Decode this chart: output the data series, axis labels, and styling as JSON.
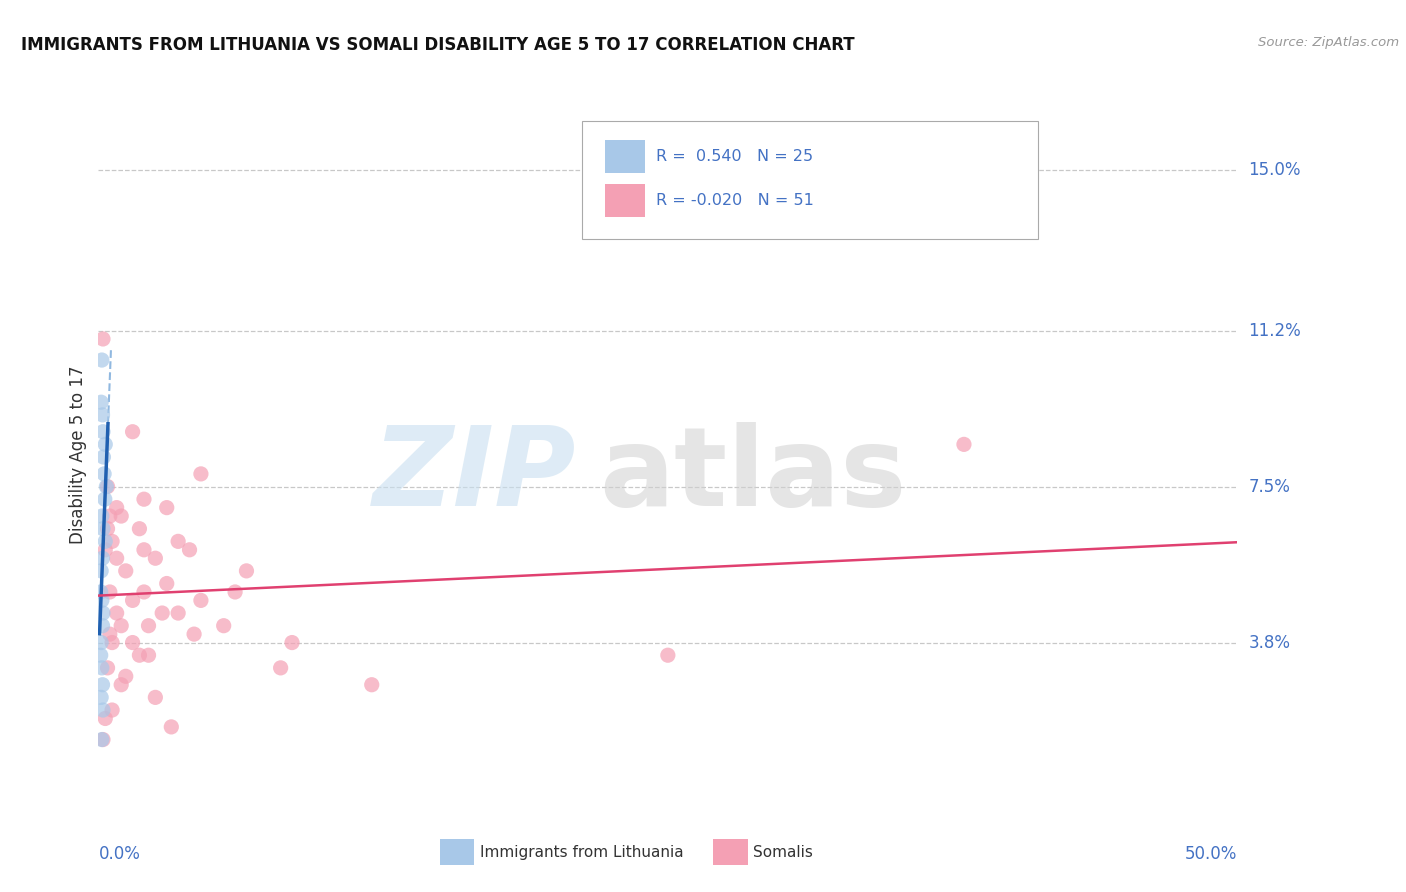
{
  "title": "IMMIGRANTS FROM LITHUANIA VS SOMALI DISABILITY AGE 5 TO 17 CORRELATION CHART",
  "source": "Source: ZipAtlas.com",
  "ylabel": "Disability Age 5 to 17",
  "xlim": [
    0.0,
    50.0
  ],
  "ylim": [
    0.0,
    16.5
  ],
  "yticks": [
    3.8,
    7.5,
    11.2,
    15.0
  ],
  "ytick_labels": [
    "3.8%",
    "7.5%",
    "11.2%",
    "15.0%"
  ],
  "color_blue": "#a8c8e8",
  "color_pink": "#f4a0b4",
  "color_blue_line": "#2060b0",
  "color_pink_line": "#e04070",
  "color_blue_dash": "#90b8e0",
  "blue_points": [
    [
      0.15,
      10.5
    ],
    [
      0.12,
      9.5
    ],
    [
      0.18,
      9.2
    ],
    [
      0.2,
      8.8
    ],
    [
      0.3,
      8.5
    ],
    [
      0.22,
      8.2
    ],
    [
      0.25,
      7.8
    ],
    [
      0.35,
      7.5
    ],
    [
      0.28,
      7.2
    ],
    [
      0.15,
      6.8
    ],
    [
      0.2,
      6.5
    ],
    [
      0.3,
      6.2
    ],
    [
      0.18,
      5.8
    ],
    [
      0.12,
      5.5
    ],
    [
      0.1,
      5.0
    ],
    [
      0.15,
      4.8
    ],
    [
      0.2,
      4.5
    ],
    [
      0.18,
      4.2
    ],
    [
      0.12,
      3.8
    ],
    [
      0.1,
      3.5
    ],
    [
      0.15,
      3.2
    ],
    [
      0.18,
      2.8
    ],
    [
      0.12,
      2.5
    ],
    [
      0.2,
      2.2
    ],
    [
      0.15,
      1.5
    ]
  ],
  "pink_points": [
    [
      0.2,
      11.0
    ],
    [
      1.5,
      8.8
    ],
    [
      4.5,
      7.8
    ],
    [
      2.0,
      7.2
    ],
    [
      0.8,
      7.0
    ],
    [
      0.5,
      6.8
    ],
    [
      0.4,
      6.5
    ],
    [
      0.6,
      6.2
    ],
    [
      3.5,
      6.2
    ],
    [
      4.0,
      6.0
    ],
    [
      2.5,
      5.8
    ],
    [
      1.2,
      5.5
    ],
    [
      6.5,
      5.5
    ],
    [
      3.0,
      5.2
    ],
    [
      2.0,
      5.0
    ],
    [
      1.5,
      4.8
    ],
    [
      4.5,
      4.8
    ],
    [
      0.8,
      4.5
    ],
    [
      3.5,
      4.5
    ],
    [
      2.8,
      4.5
    ],
    [
      5.5,
      4.2
    ],
    [
      1.0,
      4.2
    ],
    [
      0.5,
      4.0
    ],
    [
      0.6,
      3.8
    ],
    [
      8.5,
      3.8
    ],
    [
      2.2,
      3.5
    ],
    [
      1.8,
      3.5
    ],
    [
      0.4,
      3.2
    ],
    [
      1.2,
      3.0
    ],
    [
      1.0,
      2.8
    ],
    [
      2.5,
      2.5
    ],
    [
      0.6,
      2.2
    ],
    [
      0.3,
      2.0
    ],
    [
      3.2,
      1.8
    ],
    [
      0.2,
      1.5
    ],
    [
      0.5,
      5.0
    ],
    [
      1.0,
      6.8
    ],
    [
      8.0,
      3.2
    ],
    [
      38.0,
      8.5
    ],
    [
      25.0,
      3.5
    ],
    [
      12.0,
      2.8
    ],
    [
      0.4,
      7.5
    ],
    [
      1.8,
      6.5
    ],
    [
      3.0,
      7.0
    ],
    [
      2.2,
      4.2
    ],
    [
      0.8,
      5.8
    ],
    [
      4.2,
      4.0
    ],
    [
      1.5,
      3.8
    ],
    [
      6.0,
      5.0
    ],
    [
      0.3,
      6.0
    ],
    [
      2.0,
      6.0
    ]
  ]
}
